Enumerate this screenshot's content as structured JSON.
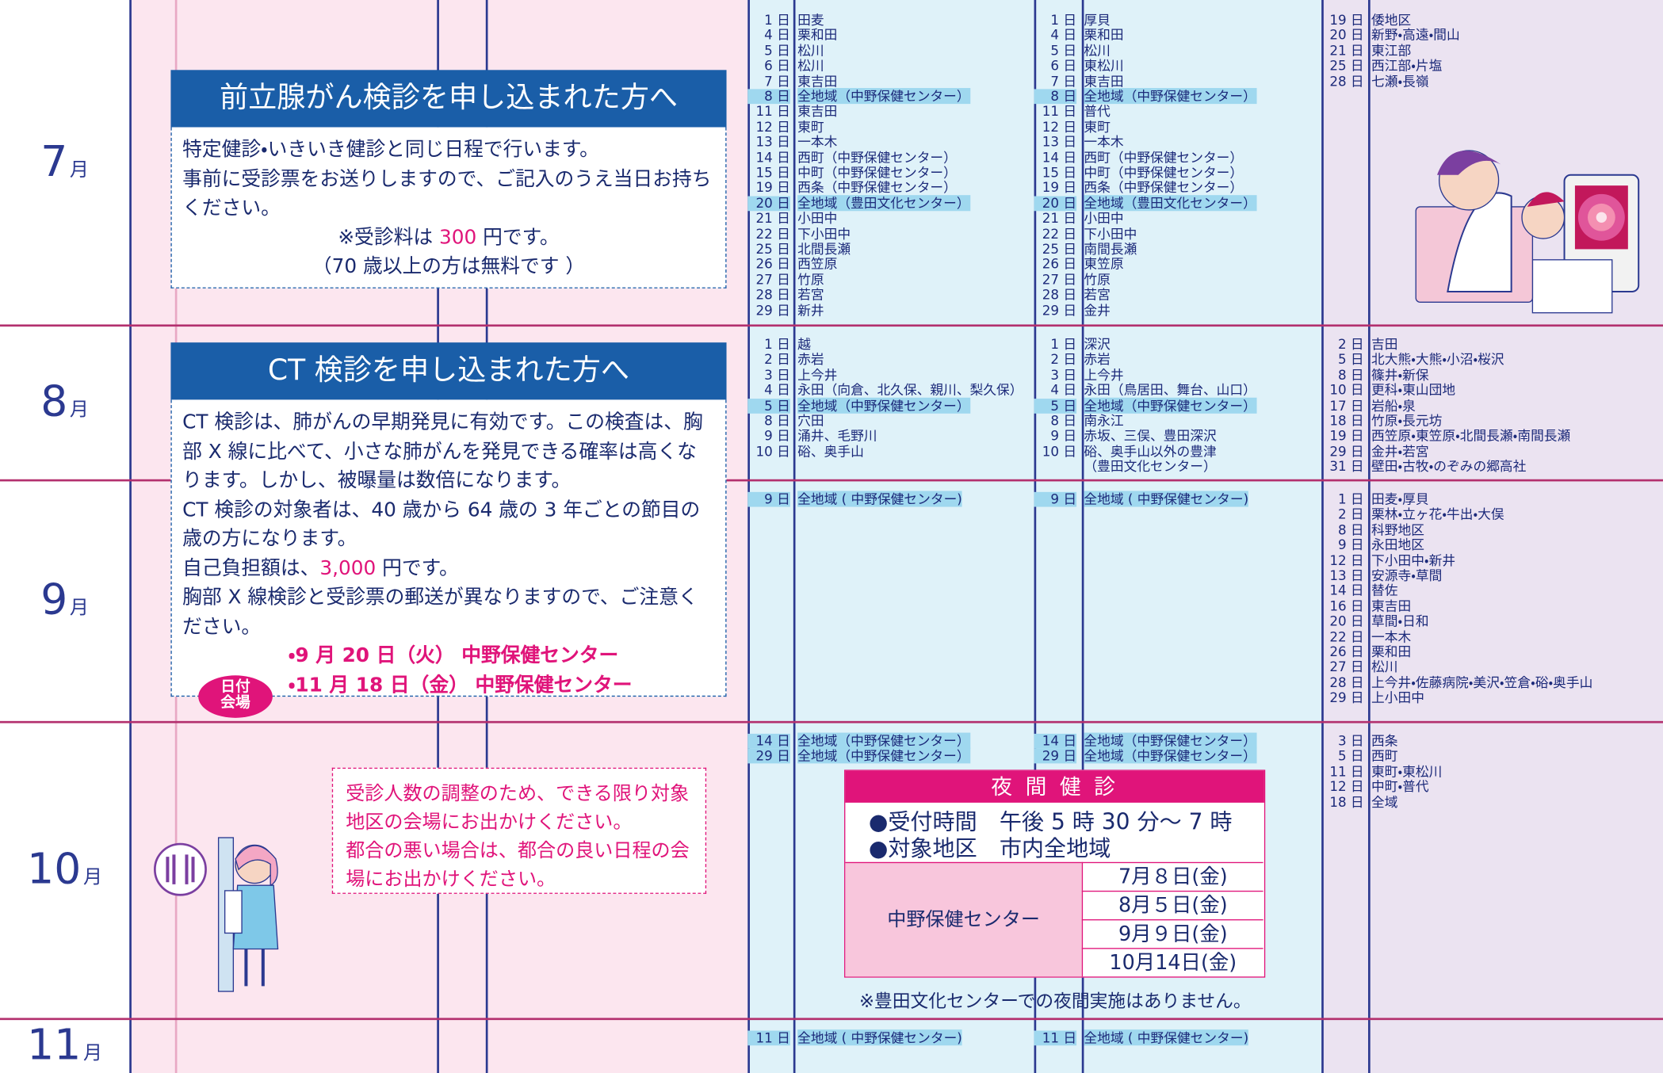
{
  "months": [
    {
      "num": "7",
      "unit": "月"
    },
    {
      "num": "8",
      "unit": "月"
    },
    {
      "num": "9",
      "unit": "月"
    },
    {
      "num": "10",
      "unit": "月"
    },
    {
      "num": "11",
      "unit": "月"
    }
  ],
  "schedule": [
    {
      "col_a": [
        {
          "day": "1 日",
          "place": "田麦"
        },
        {
          "day": "4 日",
          "place": "栗和田"
        },
        {
          "day": "5 日",
          "place": "松川"
        },
        {
          "day": "6 日",
          "place": "松川"
        },
        {
          "day": "7 日",
          "place": "東吉田"
        },
        {
          "day": "8 日",
          "place": "全地域（中野保健センター）",
          "highlight": true
        },
        {
          "day": "11 日",
          "place": "東吉田"
        },
        {
          "day": "12 日",
          "place": "東町"
        },
        {
          "day": "13 日",
          "place": "一本木"
        },
        {
          "day": "14 日",
          "place": "西町（中野保健センター）"
        },
        {
          "day": "15 日",
          "place": "中町（中野保健センター）"
        },
        {
          "day": "19 日",
          "place": "西条（中野保健センター）"
        },
        {
          "day": "20 日",
          "place": "全地域（豊田文化センター）",
          "highlight": true
        },
        {
          "day": "21 日",
          "place": "小田中"
        },
        {
          "day": "22 日",
          "place": "下小田中"
        },
        {
          "day": "25 日",
          "place": "北間長瀬"
        },
        {
          "day": "26 日",
          "place": "西笠原"
        },
        {
          "day": "27 日",
          "place": "竹原"
        },
        {
          "day": "28 日",
          "place": "若宮"
        },
        {
          "day": "29 日",
          "place": "新井"
        }
      ],
      "col_b": [
        {
          "day": "1 日",
          "place": "厚貝"
        },
        {
          "day": "4 日",
          "place": "栗和田"
        },
        {
          "day": "5 日",
          "place": "松川"
        },
        {
          "day": "6 日",
          "place": "東松川"
        },
        {
          "day": "7 日",
          "place": "東吉田"
        },
        {
          "day": "8 日",
          "place": "全地域（中野保健センター）",
          "highlight": true
        },
        {
          "day": "11 日",
          "place": "普代"
        },
        {
          "day": "12 日",
          "place": "東町"
        },
        {
          "day": "13 日",
          "place": "一本木"
        },
        {
          "day": "14 日",
          "place": "西町（中野保健センター）"
        },
        {
          "day": "15 日",
          "place": "中町（中野保健センター）"
        },
        {
          "day": "19 日",
          "place": "西条（中野保健センター）"
        },
        {
          "day": "20 日",
          "place": "全地域（豊田文化センター）",
          "highlight": true
        },
        {
          "day": "21 日",
          "place": "小田中"
        },
        {
          "day": "22 日",
          "place": "下小田中"
        },
        {
          "day": "25 日",
          "place": "南間長瀬"
        },
        {
          "day": "26 日",
          "place": "東笠原"
        },
        {
          "day": "27 日",
          "place": "竹原"
        },
        {
          "day": "28 日",
          "place": "若宮"
        },
        {
          "day": "29 日",
          "place": "金井"
        }
      ],
      "col_c": [
        {
          "day": "19 日",
          "place": "倭地区"
        },
        {
          "day": "20 日",
          "place": "新野・高遠・間山"
        },
        {
          "day": "21 日",
          "place": "東江部"
        },
        {
          "day": "25 日",
          "place": "西江部・片塩"
        },
        {
          "day": "28 日",
          "place": "七瀬・長嶺"
        }
      ]
    },
    {
      "col_a": [
        {
          "day": "1 日",
          "place": "越"
        },
        {
          "day": "2 日",
          "place": "赤岩"
        },
        {
          "day": "3 日",
          "place": "上今井"
        },
        {
          "day": "4 日",
          "place": "永田（向倉、北久保、親川、梨久保）"
        },
        {
          "day": "5 日",
          "place": "全地域（中野保健センター）",
          "highlight": true
        },
        {
          "day": "8 日",
          "place": "穴田"
        },
        {
          "day": "9 日",
          "place": "涌井、毛野川"
        },
        {
          "day": "10 日",
          "place": "硲、奥手山"
        }
      ],
      "col_b": [
        {
          "day": "1 日",
          "place": "深沢"
        },
        {
          "day": "2 日",
          "place": "赤岩"
        },
        {
          "day": "3 日",
          "place": "上今井"
        },
        {
          "day": "4 日",
          "place": "永田（鳥居田、舞台、山口）"
        },
        {
          "day": "5 日",
          "place": "全地域（中野保健センター）",
          "highlight": true
        },
        {
          "day": "8 日",
          "place": "南永江"
        },
        {
          "day": "9 日",
          "place": "赤坂、三俣、豊田深沢"
        },
        {
          "day": "10 日",
          "place": "硲、奥手山以外の豊津",
          "note": "（豊田文化センター）"
        }
      ],
      "col_c": [
        {
          "day": "2 日",
          "place": "吉田"
        },
        {
          "day": "5 日",
          "place": "北大熊・大熊・小沼・桜沢"
        },
        {
          "day": "8 日",
          "place": "篠井・新保"
        },
        {
          "day": "10 日",
          "place": "更科・東山団地"
        },
        {
          "day": "17 日",
          "place": "岩船・泉"
        },
        {
          "day": "18 日",
          "place": "竹原・長元坊"
        },
        {
          "day": "19 日",
          "place": "西笠原・東笠原・北間長瀬・南間長瀬"
        },
        {
          "day": "29 日",
          "place": "金井・若宮"
        },
        {
          "day": "31 日",
          "place": "壁田・古牧・のぞみの郷高社"
        }
      ]
    },
    {
      "col_a": [
        {
          "day": "9 日",
          "place": "全地域 ( 中野保健センター)",
          "highlight": true
        }
      ],
      "col_b": [
        {
          "day": "9 日",
          "place": "全地域 ( 中野保健センター)",
          "highlight": true
        }
      ],
      "col_c": [
        {
          "day": "1 日",
          "place": "田麦・厚貝"
        },
        {
          "day": "2 日",
          "place": "栗林・立ヶ花・牛出・大俣"
        },
        {
          "day": "8 日",
          "place": "科野地区"
        },
        {
          "day": "9 日",
          "place": "永田地区"
        },
        {
          "day": "12 日",
          "place": "下小田中・新井"
        },
        {
          "day": "13 日",
          "place": "安源寺・草間"
        },
        {
          "day": "14 日",
          "place": "替佐"
        },
        {
          "day": "16 日",
          "place": "東吉田"
        },
        {
          "day": "20 日",
          "place": "草間・日和"
        },
        {
          "day": "22 日",
          "place": "一本木"
        },
        {
          "day": "26 日",
          "place": "栗和田"
        },
        {
          "day": "27 日",
          "place": "松川"
        },
        {
          "day": "28 日",
          "place": "上今井・佐藤病院・美沢・笠倉・硲・奥手山"
        },
        {
          "day": "29 日",
          "place": "上小田中"
        }
      ]
    },
    {
      "col_a": [
        {
          "day": "14 日",
          "place": "全地域（中野保健センター）",
          "highlight": true
        },
        {
          "day": "29 日",
          "place": "全地域（中野保健センター）",
          "highlight": true
        }
      ],
      "col_b": [
        {
          "day": "14 日",
          "place": "全地域（中野保健センター）",
          "highlight": true
        },
        {
          "day": "29 日",
          "place": "全地域（中野保健センター）",
          "highlight": true
        }
      ],
      "col_c": [
        {
          "day": "3 日",
          "place": "西条"
        },
        {
          "day": "5 日",
          "place": "西町"
        },
        {
          "day": "11 日",
          "place": "東町・東松川"
        },
        {
          "day": "12 日",
          "place": "中町・普代"
        },
        {
          "day": "18 日",
          "place": "全域"
        }
      ]
    },
    {
      "col_a": [
        {
          "day": "11 日",
          "place": "全地域 ( 中野保健センター)",
          "highlight": true
        }
      ],
      "col_b": [
        {
          "day": "11 日",
          "place": "全地域 ( 中野保健センター)",
          "highlight": true
        }
      ],
      "col_c": []
    }
  ],
  "prostate": {
    "title": "前立腺がん検診を申し込まれた方へ",
    "lines": [
      "特定健診・いきいき健診と同じ日程で行います。",
      "事前に受診票をお送りしますので、ご記入のうえ当日お持ちください。"
    ],
    "fee": {
      "pre": "※受診料は ",
      "amount": "300",
      "post": " 円です。"
    },
    "fee_note": "（70 歳以上の方は無料です ）"
  },
  "ct": {
    "title": "CT 検診を申し込まれた方へ",
    "lines": [
      "CT 検診は、肺がんの早期発見に有効です。この検査は、胸部 X 線に比べて、小さな肺がんを発見できる確率は高くなります。しかし、被曝量は数倍になります。",
      "CT 検診の対象者は、40 歳から 64 歳の 3 年ごとの節目の歳の方になります。"
    ],
    "cost": {
      "pre": "自己負担額は、",
      "amount": "3,000",
      "post": " 円です。"
    },
    "caution": "胸部 X 線検診と受診票の郵送が異なりますので、ご注意ください。",
    "dates": [
      "・9 月 20 日（火） 中野保健センター",
      "・11 月 18 日（金） 中野保健センター"
    ],
    "badge": [
      "日付",
      "会場"
    ]
  },
  "advice": [
    "受診人数の調整のため、できる限り対象地区の会場にお出かけください。",
    "都合の悪い場合は、都合の良い日程の会場にお出かけください。"
  ],
  "night": {
    "title": "夜 間 健 診",
    "items": [
      "●受付時間　午後 5 時 30 分～ 7 時",
      "●対象地区　市内全地域"
    ],
    "venue": "中野保健センター",
    "dates": [
      "7月８日(金)",
      "8月５日(金)",
      "9月９日(金)",
      "10月14日(金)"
    ],
    "note": "※豊田文化センターでの夜間実施はありません。"
  }
}
